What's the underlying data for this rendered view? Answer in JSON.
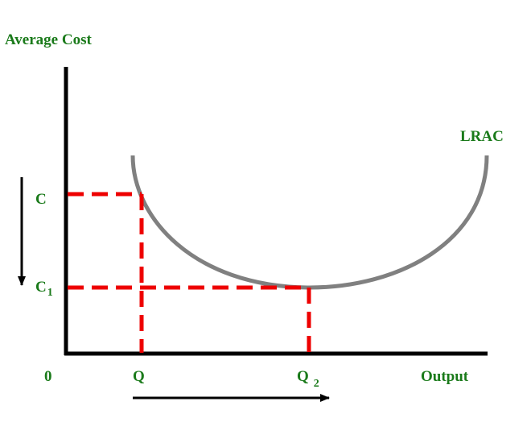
{
  "labels": {
    "y_axis": "Average Cost",
    "x_axis": "Output",
    "origin": "0",
    "curve": "LRAC",
    "cost_high": "C",
    "cost_low_base": "C",
    "cost_low_sub": "1",
    "output_low": "Q",
    "output_high_base": "Q",
    "output_high_sub": "2"
  },
  "colors": {
    "label_text": "#1a7a1a",
    "axis": "#000000",
    "curve": "#808080",
    "guide_lines": "#ee0000",
    "arrows": "#000000"
  }
}
